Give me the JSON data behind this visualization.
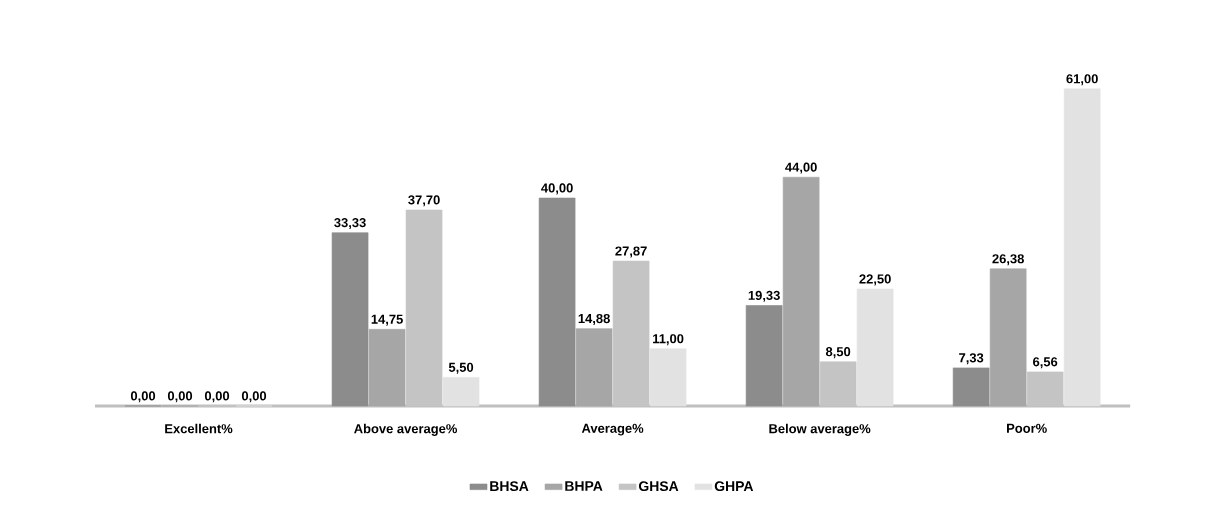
{
  "chart_data": {
    "type": "bar",
    "categories": [
      "Excellent%",
      "Above average%",
      "Average%",
      "Below average%",
      "Poor%"
    ],
    "series": [
      {
        "name": "BHSA",
        "color": "#8c8c8c",
        "values": [
          0,
          33.33,
          40,
          19.33,
          7.33
        ],
        "value_labels": [
          "0,00",
          "33,33",
          "40,00",
          "19,33",
          "7,33"
        ]
      },
      {
        "name": "BHPA",
        "color": "#a6a6a6",
        "values": [
          0,
          14.75,
          14.88,
          44,
          26.38
        ],
        "value_labels": [
          "0,00",
          "14,75",
          "14,88",
          "44,00",
          "26,38"
        ]
      },
      {
        "name": "GHSA",
        "color": "#c4c4c4",
        "values": [
          0,
          37.7,
          27.87,
          8.5,
          6.56
        ],
        "value_labels": [
          "0,00",
          "37,70",
          "27,87",
          "8,50",
          "6,56"
        ]
      },
      {
        "name": "GHPA",
        "color": "#e2e2e2",
        "values": [
          0,
          5.5,
          11,
          22.5,
          61
        ],
        "value_labels": [
          "0,00",
          "5,50",
          "11,00",
          "22,50",
          "61,00"
        ]
      }
    ],
    "legend": "bottom"
  }
}
